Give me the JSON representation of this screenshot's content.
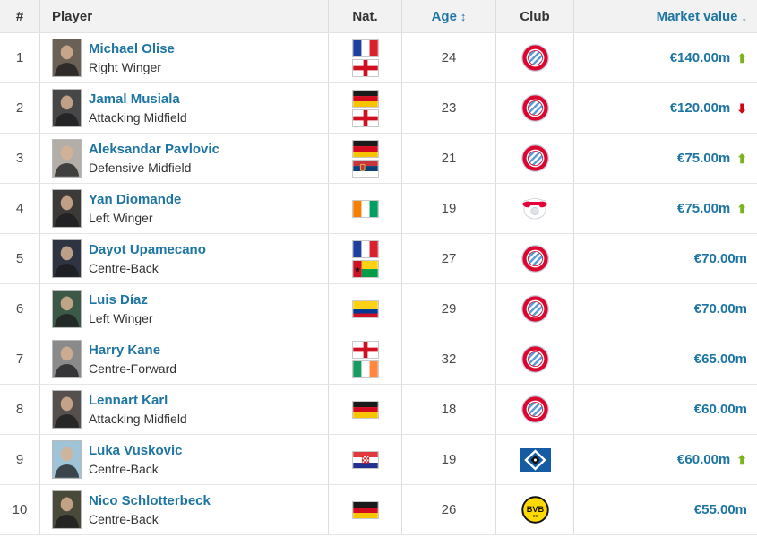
{
  "colors": {
    "link_blue": "#1d75a3",
    "trend_up_green": "#7ab41a",
    "trend_down_red": "#d20515",
    "header_bg": "#f2f2f2",
    "header_text": "#333333",
    "row_border": "#e5e5e5"
  },
  "table": {
    "columns": {
      "rank": "#",
      "player": "Player",
      "nat": "Nat.",
      "age": "Age",
      "club": "Club",
      "market_value": "Market value"
    },
    "sort_icons": {
      "age": "↕",
      "market_value": "↓"
    },
    "rows": [
      {
        "rank": "1",
        "name": "Michael Olise",
        "position": "Right Winger",
        "nationalities": [
          "France",
          "England"
        ],
        "age": "24",
        "club": "Bayern Munich",
        "market_value": "€140.00m",
        "trend": "up",
        "photo_bg": "#6b6056"
      },
      {
        "rank": "2",
        "name": "Jamal Musiala",
        "position": "Attacking Midfield",
        "nationalities": [
          "Germany",
          "England"
        ],
        "age": "23",
        "club": "Bayern Munich",
        "market_value": "€120.00m",
        "trend": "down",
        "photo_bg": "#474747"
      },
      {
        "rank": "3",
        "name": "Aleksandar Pavlovic",
        "position": "Defensive Midfield",
        "nationalities": [
          "Germany",
          "Serbia"
        ],
        "age": "21",
        "club": "Bayern Munich",
        "market_value": "€75.00m",
        "trend": "up",
        "photo_bg": "#b3afa8"
      },
      {
        "rank": "4",
        "name": "Yan Diomande",
        "position": "Left Winger",
        "nationalities": [
          "Ivory Coast"
        ],
        "age": "19",
        "club": "RB Leipzig",
        "market_value": "€75.00m",
        "trend": "up",
        "photo_bg": "#3c3a38"
      },
      {
        "rank": "5",
        "name": "Dayot Upamecano",
        "position": "Centre-Back",
        "nationalities": [
          "France",
          "Guinea-Bissau"
        ],
        "age": "27",
        "club": "Bayern Munich",
        "market_value": "€70.00m",
        "trend": "none",
        "photo_bg": "#2e3442"
      },
      {
        "rank": "6",
        "name": "Luis Díaz",
        "position": "Left Winger",
        "nationalities": [
          "Colombia"
        ],
        "age": "29",
        "club": "Bayern Munich",
        "market_value": "€70.00m",
        "trend": "none",
        "photo_bg": "#3c5948"
      },
      {
        "rank": "7",
        "name": "Harry Kane",
        "position": "Centre-Forward",
        "nationalities": [
          "England",
          "Ireland"
        ],
        "age": "32",
        "club": "Bayern Munich",
        "market_value": "€65.00m",
        "trend": "none",
        "photo_bg": "#8a8a8a"
      },
      {
        "rank": "8",
        "name": "Lennart Karl",
        "position": "Attacking Midfield",
        "nationalities": [
          "Germany"
        ],
        "age": "18",
        "club": "Bayern Munich",
        "market_value": "€60.00m",
        "trend": "none",
        "photo_bg": "#55504d"
      },
      {
        "rank": "9",
        "name": "Luka Vuskovic",
        "position": "Centre-Back",
        "nationalities": [
          "Croatia"
        ],
        "age": "19",
        "club": "Hamburger SV",
        "market_value": "€60.00m",
        "trend": "up",
        "photo_bg": "#9fc4d8"
      },
      {
        "rank": "10",
        "name": "Nico Schlotterbeck",
        "position": "Centre-Back",
        "nationalities": [
          "Germany"
        ],
        "age": "26",
        "club": "Borussia Dortmund",
        "market_value": "€55.00m",
        "trend": "none",
        "photo_bg": "#4a4a3a"
      }
    ]
  }
}
